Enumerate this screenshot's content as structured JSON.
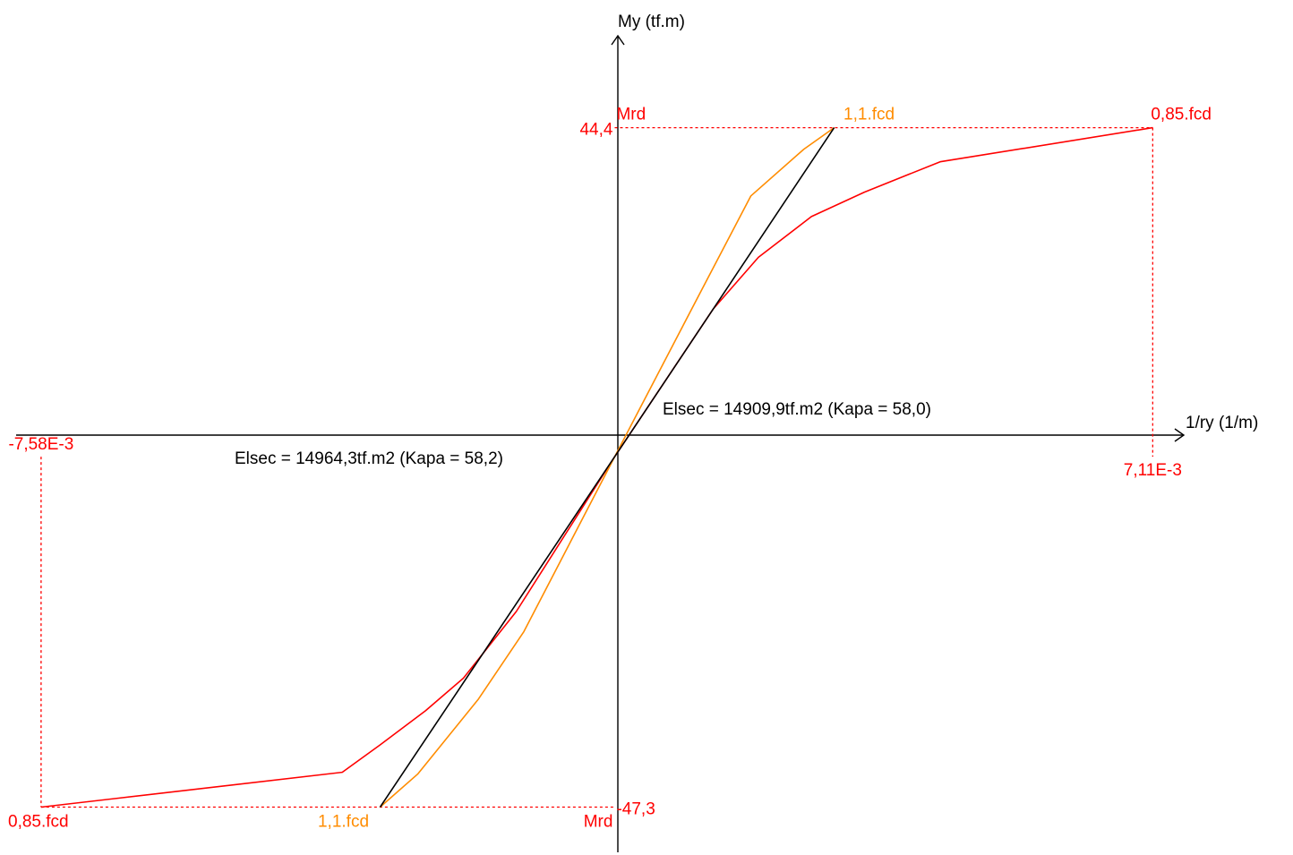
{
  "chart_data": {
    "type": "line",
    "title": "",
    "xlabel": "1/ry (1/m)",
    "ylabel": "My (tf.m)",
    "xlim": [
      -0.00791,
      0.00752
    ],
    "ylim": [
      -53.4,
      56.8
    ],
    "grid": false,
    "colors": {
      "red": "#ff0000",
      "orange": "#ff8c00",
      "black": "#000000"
    },
    "limits": {
      "x_neg": -0.00758,
      "x_neg_label": "-7,58E-3",
      "x_pos": 0.00711,
      "x_pos_label": "7,11E-3",
      "y_pos": 44.4,
      "y_pos_label": "44,4",
      "y_neg": -47.3,
      "y_neg_label": "-47,3",
      "x_orange_pos": 0.0029,
      "x_orange_neg": -0.0031
    },
    "annotations": {
      "mrd_top": "Mrd",
      "mrd_bottom": "Mrd",
      "orange_top": "1,1.fcd",
      "orange_bottom": "1,1.fcd",
      "red_top": "0,85.fcd",
      "red_bottom": "0,85.fcd",
      "elsec_pos": "Elsec = 14909,9tf.m2 (Kapa = 58,0)",
      "elsec_neg": "Elsec = 14964,3tf.m2 (Kapa = 58,2)"
    },
    "series": [
      {
        "color": "red",
        "points": [
          [
            -0.00758,
            -47.3
          ],
          [
            -0.0036,
            -42.6
          ],
          [
            -0.0031,
            -38.9
          ],
          [
            -0.0025,
            -34.3
          ],
          [
            -0.002,
            -29.9
          ],
          [
            -0.0013,
            -20.9
          ],
          [
            0.0,
            0.0
          ],
          [
            0.0013,
            19.9
          ],
          [
            0.0019,
            26.9
          ],
          [
            0.0026,
            32.4
          ],
          [
            0.0033,
            35.7
          ],
          [
            0.0043,
            39.8
          ],
          [
            0.00711,
            44.4
          ]
        ]
      },
      {
        "color": "orange",
        "points": [
          [
            -0.0031,
            -47.3
          ],
          [
            -0.0026,
            -42.8
          ],
          [
            -0.0018,
            -32.7
          ],
          [
            -0.0012,
            -23.6
          ],
          [
            0.0,
            0.0
          ],
          [
            0.0012,
            23.5
          ],
          [
            0.0018,
            35.2
          ],
          [
            0.0025,
            41.5
          ],
          [
            0.0029,
            44.4
          ]
        ]
      },
      {
        "color": "black",
        "points": [
          [
            -0.0031,
            -47.3
          ],
          [
            0.0,
            0.0
          ],
          [
            0.0029,
            44.4
          ]
        ]
      }
    ]
  }
}
